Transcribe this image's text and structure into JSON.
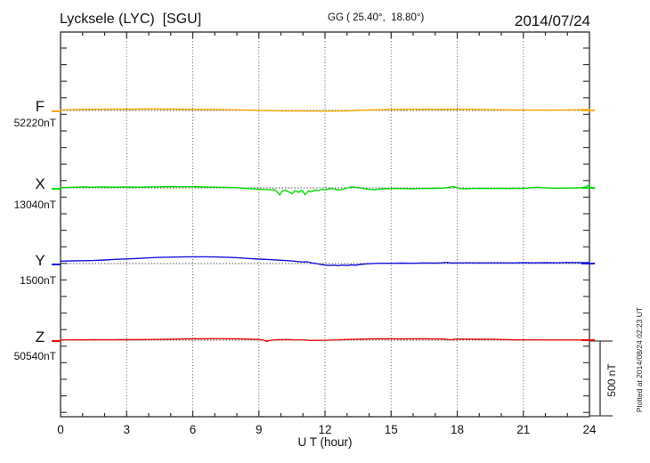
{
  "header": {
    "station_title": "Lycksele (LYC)  [SGU]",
    "coords_label": "GG ( 25.40°,  18.80°)",
    "date": "2014/07/24"
  },
  "channels": [
    {
      "letter": "F",
      "baseline_label": "52220nT",
      "color": "#f5a800"
    },
    {
      "letter": "X",
      "baseline_label": "13040nT",
      "color": "#00d900"
    },
    {
      "letter": "Y",
      "baseline_label": "1500nT",
      "color": "#1414e0"
    },
    {
      "letter": "Z",
      "baseline_label": "50540nT",
      "color": "#e81010"
    }
  ],
  "xaxis": {
    "label": "U T (hour)",
    "min": 0,
    "max": 24,
    "ticks": [
      0,
      3,
      6,
      9,
      12,
      15,
      18,
      21,
      24
    ]
  },
  "scale_bar": {
    "label": "500 nT",
    "nT": 500
  },
  "footer_note": "Plotted at 2014/08/24 02:23 UT",
  "colors": {
    "frame": "#2a2a2a",
    "grid": "#5a5a5a",
    "baseline_dots": "#444444"
  },
  "chart_data": {
    "type": "line",
    "title": "Lycksele (LYC) [SGU] magnetogram for 2014/07/24",
    "xlabel": "U T (hour)",
    "x_range_hours": [
      0,
      24
    ],
    "x_ticks": [
      0,
      3,
      6,
      9,
      12,
      15,
      18,
      21,
      24
    ],
    "scale_nT_per_div": 500,
    "legend_position": "left",
    "grid": "dotted-vertical-3h",
    "series": [
      {
        "name": "F",
        "baseline_nT": 52220,
        "color": "#f5a800",
        "points_hour_devnT": [
          [
            0,
            2
          ],
          [
            0.5,
            5
          ],
          [
            1,
            7
          ],
          [
            1.5,
            8
          ],
          [
            2,
            8
          ],
          [
            2.5,
            9
          ],
          [
            3,
            8
          ],
          [
            3.5,
            9
          ],
          [
            4,
            10
          ],
          [
            4.5,
            9
          ],
          [
            5,
            9
          ],
          [
            5.5,
            8
          ],
          [
            6,
            7
          ],
          [
            6.5,
            6
          ],
          [
            7,
            6
          ],
          [
            7.5,
            5
          ],
          [
            8,
            4
          ],
          [
            8.5,
            2
          ],
          [
            9,
            0
          ],
          [
            9.5,
            -2
          ],
          [
            10,
            -3
          ],
          [
            10.5,
            -4
          ],
          [
            11,
            -3
          ],
          [
            11.5,
            -4
          ],
          [
            12,
            -5
          ],
          [
            12.5,
            -5
          ],
          [
            13,
            -3
          ],
          [
            13.5,
            0
          ],
          [
            14,
            3
          ],
          [
            14.5,
            5
          ],
          [
            15,
            6
          ],
          [
            15.5,
            7
          ],
          [
            16,
            7
          ],
          [
            16.5,
            8
          ],
          [
            17,
            7
          ],
          [
            17.5,
            8
          ],
          [
            18,
            7
          ],
          [
            18.5,
            7
          ],
          [
            19,
            6
          ],
          [
            19.5,
            5
          ],
          [
            20,
            4
          ],
          [
            20.5,
            3
          ],
          [
            21,
            3
          ],
          [
            21.5,
            2
          ],
          [
            22,
            2
          ],
          [
            22.5,
            2
          ],
          [
            23,
            3
          ],
          [
            23.5,
            4
          ],
          [
            24,
            6
          ]
        ]
      },
      {
        "name": "X",
        "baseline_nT": 13040,
        "color": "#00d900",
        "points_hour_devnT": [
          [
            0,
            0
          ],
          [
            0.5,
            4
          ],
          [
            1,
            6
          ],
          [
            1.5,
            5
          ],
          [
            2,
            6
          ],
          [
            2.5,
            5
          ],
          [
            3,
            6
          ],
          [
            3.5,
            5
          ],
          [
            4,
            6
          ],
          [
            4.5,
            7
          ],
          [
            5,
            9
          ],
          [
            5.5,
            8
          ],
          [
            6,
            8
          ],
          [
            6.5,
            6
          ],
          [
            7,
            5
          ],
          [
            7.5,
            3
          ],
          [
            8,
            1
          ],
          [
            8.4,
            -3
          ],
          [
            8.8,
            -7
          ],
          [
            9.2,
            -10
          ],
          [
            9.5,
            -13
          ],
          [
            9.7,
            -11
          ],
          [
            9.85,
            -30
          ],
          [
            9.95,
            -48
          ],
          [
            10.05,
            -22
          ],
          [
            10.2,
            -16
          ],
          [
            10.35,
            -26
          ],
          [
            10.5,
            -40
          ],
          [
            10.65,
            -18
          ],
          [
            10.8,
            -30
          ],
          [
            10.95,
            -16
          ],
          [
            11.1,
            -46
          ],
          [
            11.25,
            -20
          ],
          [
            11.4,
            -26
          ],
          [
            11.55,
            -14
          ],
          [
            11.7,
            -18
          ],
          [
            11.85,
            -11
          ],
          [
            12,
            -13
          ],
          [
            12.15,
            -8
          ],
          [
            12.3,
            -4
          ],
          [
            12.5,
            -10
          ],
          [
            12.65,
            -15
          ],
          [
            12.8,
            -9
          ],
          [
            12.95,
            -3
          ],
          [
            13.1,
            3
          ],
          [
            13.25,
            6
          ],
          [
            13.45,
            3
          ],
          [
            13.65,
            -1
          ],
          [
            13.85,
            -7
          ],
          [
            14.05,
            -11
          ],
          [
            14.25,
            -12
          ],
          [
            14.45,
            -8
          ],
          [
            14.7,
            -6
          ],
          [
            15,
            -5
          ],
          [
            15.3,
            -3
          ],
          [
            15.6,
            -5
          ],
          [
            16,
            -6
          ],
          [
            16.5,
            -4
          ],
          [
            17,
            -3
          ],
          [
            17.35,
            -1
          ],
          [
            17.65,
            3
          ],
          [
            17.8,
            10
          ],
          [
            17.95,
            3
          ],
          [
            18.1,
            -4
          ],
          [
            18.35,
            -6
          ],
          [
            18.6,
            -4
          ],
          [
            19,
            -3
          ],
          [
            19.5,
            -4
          ],
          [
            20,
            -3
          ],
          [
            20.5,
            -4
          ],
          [
            21,
            -3
          ],
          [
            21.3,
            0
          ],
          [
            21.6,
            4
          ],
          [
            21.9,
            1
          ],
          [
            22.2,
            -1
          ],
          [
            22.5,
            -3
          ],
          [
            22.8,
            -2
          ],
          [
            23.1,
            -1
          ],
          [
            23.4,
            0
          ],
          [
            23.65,
            2
          ],
          [
            23.85,
            7
          ],
          [
            24,
            22
          ]
        ]
      },
      {
        "name": "Y",
        "baseline_nT": 1500,
        "color": "#1414e0",
        "points_hour_devnT": [
          [
            0,
            16
          ],
          [
            0.5,
            18
          ],
          [
            1,
            19
          ],
          [
            1.5,
            20
          ],
          [
            2,
            24
          ],
          [
            2.5,
            28
          ],
          [
            3,
            31
          ],
          [
            3.5,
            34
          ],
          [
            4,
            38
          ],
          [
            4.5,
            41
          ],
          [
            5,
            43
          ],
          [
            5.5,
            44
          ],
          [
            6,
            45
          ],
          [
            6.5,
            45
          ],
          [
            7,
            44
          ],
          [
            7.5,
            42
          ],
          [
            8,
            39
          ],
          [
            8.5,
            34
          ],
          [
            9,
            30
          ],
          [
            9.5,
            26
          ],
          [
            10,
            22
          ],
          [
            10.5,
            17
          ],
          [
            11,
            10
          ],
          [
            11.2,
            12
          ],
          [
            11.4,
            4
          ],
          [
            11.6,
            0
          ],
          [
            11.8,
            -6
          ],
          [
            12,
            -10
          ],
          [
            12.2,
            -13
          ],
          [
            12.4,
            -11
          ],
          [
            12.6,
            -14
          ],
          [
            12.8,
            -11
          ],
          [
            13,
            -13
          ],
          [
            13.2,
            -9
          ],
          [
            13.4,
            -11
          ],
          [
            13.6,
            -6
          ],
          [
            13.8,
            -3
          ],
          [
            14,
            -1
          ],
          [
            14.3,
            1
          ],
          [
            14.6,
            2
          ],
          [
            15,
            2
          ],
          [
            15.5,
            3
          ],
          [
            16,
            2
          ],
          [
            16.5,
            4
          ],
          [
            17,
            3
          ],
          [
            17.3,
            5
          ],
          [
            17.5,
            8
          ],
          [
            17.7,
            4
          ],
          [
            18,
            4
          ],
          [
            18.5,
            5
          ],
          [
            19,
            4
          ],
          [
            19.5,
            5
          ],
          [
            20,
            5
          ],
          [
            20.5,
            4
          ],
          [
            21,
            6
          ],
          [
            21.5,
            5
          ],
          [
            22,
            6
          ],
          [
            22.5,
            5
          ],
          [
            23,
            7
          ],
          [
            23.5,
            6
          ],
          [
            24,
            6
          ]
        ]
      },
      {
        "name": "Z",
        "baseline_nT": 50540,
        "color": "#e81010",
        "points_hour_devnT": [
          [
            0,
            1
          ],
          [
            0.5,
            2
          ],
          [
            1,
            2
          ],
          [
            1.5,
            3
          ],
          [
            2,
            2
          ],
          [
            2.5,
            3
          ],
          [
            3,
            3
          ],
          [
            3.5,
            3
          ],
          [
            4,
            4
          ],
          [
            4.5,
            5
          ],
          [
            5,
            6
          ],
          [
            5.5,
            8
          ],
          [
            6,
            9
          ],
          [
            6.5,
            9
          ],
          [
            7,
            10
          ],
          [
            7.5,
            9
          ],
          [
            8,
            9
          ],
          [
            8.5,
            7
          ],
          [
            9,
            4
          ],
          [
            9.2,
            1
          ],
          [
            9.35,
            -9
          ],
          [
            9.5,
            -2
          ],
          [
            9.7,
            1
          ],
          [
            10,
            3
          ],
          [
            10.3,
            4
          ],
          [
            10.6,
            2
          ],
          [
            11,
            1
          ],
          [
            11.3,
            -1
          ],
          [
            11.6,
            -2
          ],
          [
            12,
            -1
          ],
          [
            12.3,
            1
          ],
          [
            12.6,
            2
          ],
          [
            13,
            4
          ],
          [
            13.5,
            6
          ],
          [
            14,
            8
          ],
          [
            14.5,
            9
          ],
          [
            15,
            9
          ],
          [
            15.5,
            8
          ],
          [
            16,
            9
          ],
          [
            16.5,
            9
          ],
          [
            17,
            8
          ],
          [
            17.4,
            7
          ],
          [
            17.7,
            2
          ],
          [
            17.9,
            6
          ],
          [
            18.2,
            7
          ],
          [
            18.6,
            6
          ],
          [
            19,
            6
          ],
          [
            19.5,
            6
          ],
          [
            20,
            4
          ],
          [
            20.5,
            2
          ],
          [
            21,
            2
          ],
          [
            21.5,
            2
          ],
          [
            22,
            1
          ],
          [
            22.5,
            1
          ],
          [
            23,
            1
          ],
          [
            23.5,
            1
          ],
          [
            24,
            1
          ]
        ]
      }
    ]
  }
}
